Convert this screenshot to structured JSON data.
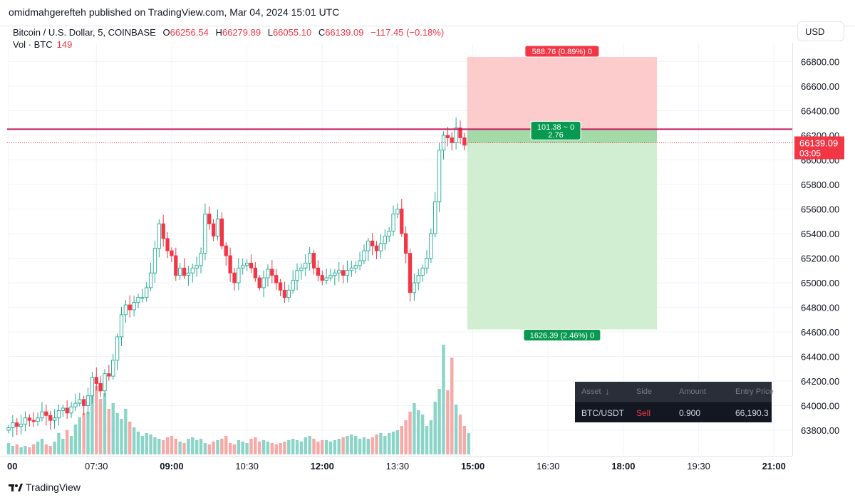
{
  "header": {
    "published": "omidmahgerefteh published on TradingView.com, Mar 04, 2024 15:01 UTC"
  },
  "legend": {
    "symbol": "Bitcoin / U.S. Dollar, 5, COINBASE",
    "open_key": "O",
    "open": "66256.54",
    "high_key": "H",
    "high": "66279.89",
    "low_key": "L",
    "low": "66055.10",
    "close_key": "C",
    "close": "66139.09",
    "change": "−117.45 (−0.18%)",
    "volume_label": "Vol · BTC",
    "volume_value": "149"
  },
  "currency_button": "USD",
  "brand": "TradingView",
  "colors": {
    "up": "#22ab94",
    "down": "#f23645",
    "up_vol": "#8bd4c8",
    "down_vol": "#f7a9a7",
    "stop_zone": "#fbc7c5",
    "target_zone": "#cdeccd",
    "target_badge": "#089950",
    "stop_badge": "#f23645"
  },
  "chart_data": {
    "type": "candlestick",
    "symbol": "BTCUSD",
    "timeframe": "5",
    "price_ticks": [
      63800,
      64000,
      64200,
      64400,
      64600,
      64800,
      65000,
      65200,
      65400,
      65600,
      65800,
      66000,
      66200,
      66400,
      66600,
      66800
    ],
    "price_tick_labels": [
      "63800.00",
      "64000.00",
      "64200.00",
      "64400.00",
      "64600.00",
      "64800.00",
      "65000.00",
      "65200.00",
      "65400.00",
      "65600.00",
      "65800.00",
      "66000.00",
      "66200.00",
      "66400.00",
      "66600.00",
      "66800.00"
    ],
    "time_ticks": [
      {
        "label": "00",
        "bold": true,
        "bar": 0
      },
      {
        "label": "07:30",
        "bold": false,
        "bar": 21
      },
      {
        "label": "09:00",
        "bold": true,
        "bar": 39
      },
      {
        "label": "10:30",
        "bold": false,
        "bar": 57
      },
      {
        "label": "12:00",
        "bold": true,
        "bar": 75
      },
      {
        "label": "13:30",
        "bold": false,
        "bar": 93
      },
      {
        "label": "15:00",
        "bold": true,
        "bar": 111
      },
      {
        "label": "16:30",
        "bold": false,
        "bar": 129
      },
      {
        "label": "18:00",
        "bold": true,
        "bar": 147
      },
      {
        "label": "19:30",
        "bold": false,
        "bar": 165
      },
      {
        "label": "21:00",
        "bold": true,
        "bar": 183
      }
    ],
    "ohlc_close_path": [
      63820,
      63860,
      63830,
      63850,
      63900,
      63880,
      63870,
      63900,
      63950,
      63920,
      63880,
      63900,
      63960,
      63980,
      63940,
      63990,
      64020,
      64050,
      64000,
      64080,
      64230,
      64180,
      64120,
      64260,
      64240,
      64370,
      64560,
      64740,
      64820,
      64780,
      64840,
      64880,
      64880,
      64960,
      65080,
      65280,
      65480,
      65360,
      65260,
      65220,
      65060,
      65120,
      65060,
      65080,
      65120,
      65140,
      65240,
      65560,
      65480,
      65380,
      65520,
      65300,
      65220,
      65080,
      65000,
      65120,
      65140,
      65160,
      65120,
      65040,
      64960,
      65040,
      65110,
      65060,
      65000,
      64940,
      64880,
      64940,
      65020,
      65100,
      65120,
      65160,
      65240,
      65120,
      65060,
      65020,
      65040,
      65060,
      65080,
      65100,
      65060,
      65100,
      65120,
      65140,
      65180,
      65260,
      65340,
      65300,
      65260,
      65320,
      65380,
      65420,
      65560,
      65600,
      65400,
      65240,
      64920,
      65000,
      65060,
      65120,
      65200,
      65400,
      65660,
      66080,
      66200,
      66180,
      66140,
      66260,
      66180,
      66120,
      66139
    ],
    "volume_heights": [
      16,
      12,
      14,
      10,
      12,
      10,
      14,
      18,
      22,
      14,
      12,
      18,
      30,
      22,
      34,
      26,
      42,
      52,
      58,
      60,
      92,
      96,
      78,
      86,
      64,
      72,
      58,
      50,
      64,
      46,
      38,
      32,
      26,
      30,
      28,
      24,
      22,
      20,
      24,
      26,
      22,
      18,
      16,
      22,
      24,
      20,
      22,
      16,
      14,
      18,
      20,
      22,
      26,
      16,
      14,
      20,
      18,
      16,
      22,
      24,
      18,
      20,
      18,
      16,
      14,
      16,
      18,
      20,
      22,
      20,
      18,
      24,
      26,
      22,
      18,
      20,
      20,
      18,
      20,
      22,
      24,
      26,
      28,
      26,
      22,
      24,
      22,
      24,
      28,
      30,
      26,
      30,
      32,
      34,
      40,
      48,
      60,
      72,
      62,
      56,
      40,
      48,
      74,
      92,
      154,
      90,
      136,
      70,
      56,
      40,
      30
    ],
    "position": {
      "side": "short",
      "entry": 66250,
      "stop": 66838,
      "target": 64620,
      "close_price": 66139.09,
      "stop_label": "588.76 (0.89%) 0",
      "target_label": "1626.39 (2.46%) 0",
      "ratio_label_top": "101.38 ~ 0",
      "ratio_label_bottom": "2.76"
    },
    "last_price_label": "66139.09",
    "countdown_label": "03:05"
  },
  "positions_panel": {
    "headers": [
      "Asset",
      "Side",
      "Amount",
      "Entry Price"
    ],
    "row": {
      "asset": "BTC/USDT",
      "side": "Sell",
      "amount": "0.900",
      "entry_price": "66,190.3"
    }
  }
}
